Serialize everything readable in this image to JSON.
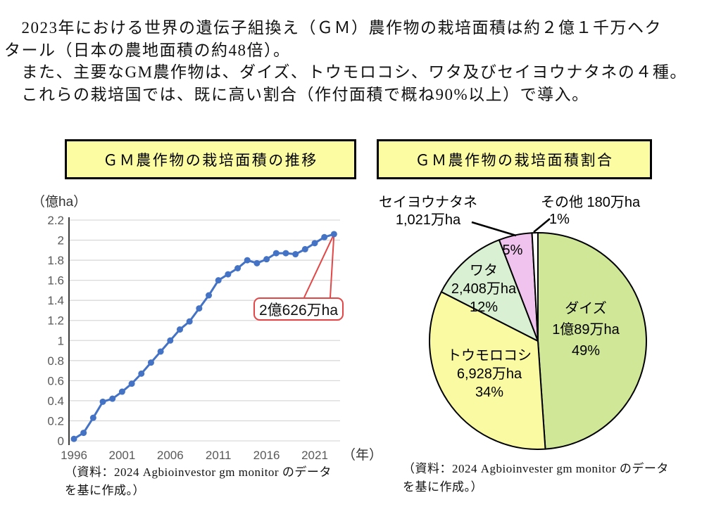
{
  "header": {
    "lines": [
      "　2023年における世界の遺伝子組換え（ＧＭ）農作物の栽培面積は約２億１千万ヘク",
      "タール（日本の農地面積の約48倍）。",
      "　また、主要なGM農作物は、ダイズ、トウモロコシ、ワタ及びセイヨウナタネの４種。",
      "　これらの栽培国では、既に高い割合（作付面積で概ね90%以上）で導入。"
    ]
  },
  "left_chart": {
    "title": "ＧＭ農作物の栽培面積の推移",
    "source_lines": [
      "（資料：2024 Agbioinvestor gm monitor のデータ",
      "を基に作成。）"
    ]
  },
  "right_chart": {
    "title": "ＧＭ農作物の栽培面積割合",
    "labels": {
      "canola": [
        "セイヨウナタネ",
        "1,021万ha"
      ],
      "others": [
        "その他 180万ha",
        "1%"
      ],
      "canola_pct": "5%",
      "cotton": [
        "ワタ",
        "2,408万ha",
        "12%"
      ],
      "corn": [
        "トウモロコシ",
        "6,928万ha",
        "34%"
      ],
      "soybean": [
        "ダイズ",
        "1億89万ha",
        "49%"
      ]
    },
    "source_lines": [
      "（資料：2024 Agbioinvester gm monitor のデータ",
      "を基に作成。）"
    ]
  },
  "chart_data": [
    {
      "type": "line",
      "title": "ＧＭ農作物の栽培面積の推移",
      "ylabel": "（億ha）",
      "xlabel": "（年）",
      "x": [
        1996,
        1997,
        1998,
        1999,
        2000,
        2001,
        2002,
        2003,
        2004,
        2005,
        2006,
        2007,
        2008,
        2009,
        2010,
        2011,
        2012,
        2013,
        2014,
        2015,
        2016,
        2017,
        2018,
        2019,
        2020,
        2021,
        2022,
        2023
      ],
      "values": [
        0.02,
        0.08,
        0.23,
        0.39,
        0.42,
        0.49,
        0.57,
        0.67,
        0.78,
        0.89,
        1.0,
        1.11,
        1.19,
        1.32,
        1.45,
        1.6,
        1.66,
        1.72,
        1.8,
        1.77,
        1.81,
        1.87,
        1.87,
        1.86,
        1.91,
        1.97,
        2.03,
        2.06
      ],
      "ylim": [
        0,
        2.2
      ],
      "ytick_step": 0.2,
      "xticks": [
        1996,
        2001,
        2006,
        2011,
        2016,
        2021
      ],
      "grid": true,
      "line_color": "#4472c4",
      "grid_color": "#d9d9d9",
      "axis_color": "#262626",
      "tick_color": "#595959",
      "annotation": {
        "text": "2億626万ha",
        "x": 2023,
        "y": 2.06,
        "color": "#e34646"
      }
    },
    {
      "type": "pie",
      "title": "ＧＭ農作物の栽培面積割合",
      "start_angle_deg": 0,
      "clockwise": true,
      "stroke_color": "#000000",
      "slices": [
        {
          "name": "ダイズ",
          "value_label": "1億89万ha",
          "value_man_ha": 10089,
          "pct": 49,
          "color": "#cfe797"
        },
        {
          "name": "トウモロコシ",
          "value_label": "6,928万ha",
          "value_man_ha": 6928,
          "pct": 34,
          "color": "#fafaa2"
        },
        {
          "name": "ワタ",
          "value_label": "2,408万ha",
          "value_man_ha": 2408,
          "pct": 12,
          "color": "#d9f0d2"
        },
        {
          "name": "セイヨウナタネ",
          "value_label": "1,021万ha",
          "value_man_ha": 1021,
          "pct": 5,
          "color": "#f0c3ee"
        },
        {
          "name": "その他",
          "value_label": "180万ha",
          "value_man_ha": 180,
          "pct": 1,
          "color": "#ffffff"
        }
      ]
    }
  ]
}
